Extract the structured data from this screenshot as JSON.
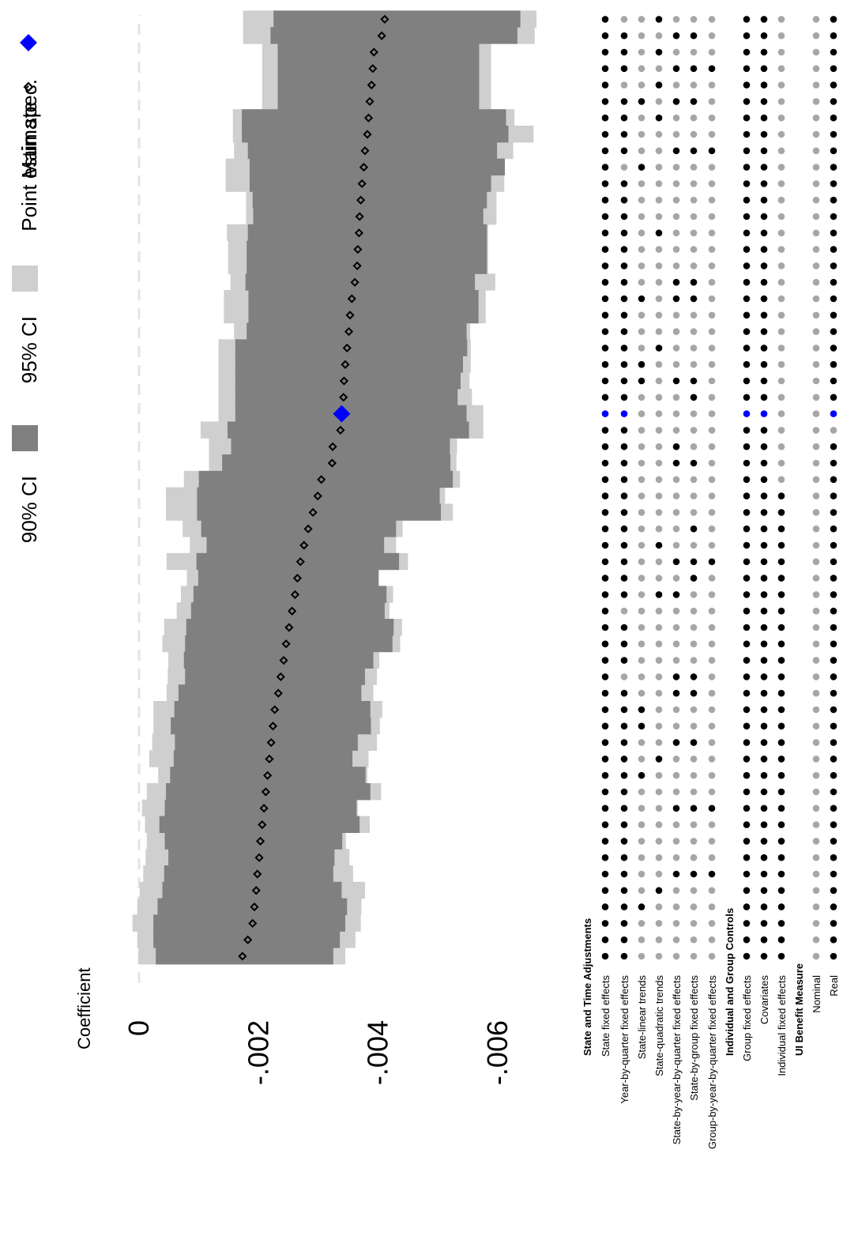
{
  "chart_data": {
    "type": "scatter",
    "subtype": "specification-curve",
    "orientation": "rotated-90",
    "ylabel": "Coefficient",
    "ticks": [
      {
        "value": 0,
        "label": "0"
      },
      {
        "value": -0.002,
        "label": "-.002"
      },
      {
        "value": -0.004,
        "label": "-.004"
      },
      {
        "value": -0.006,
        "label": "-.006"
      }
    ],
    "zero_line": true,
    "legend": {
      "placement": "right",
      "entries": [
        {
          "key": "main",
          "label": "Main spec."
        },
        {
          "key": "point",
          "label": "Point estimate"
        },
        {
          "key": "ci95",
          "label": "95% CI"
        },
        {
          "key": "ci90",
          "label": "90% CI"
        }
      ]
    },
    "main_spec_index": 33,
    "estimates": [
      -0.00173,
      -0.00182,
      -0.0019,
      -0.00193,
      -0.00196,
      -0.00198,
      -0.00201,
      -0.00203,
      -0.00206,
      -0.00209,
      -0.00212,
      -0.00215,
      -0.00218,
      -0.00221,
      -0.00224,
      -0.00227,
      -0.00233,
      -0.00237,
      -0.00242,
      -0.00246,
      -0.00251,
      -0.00256,
      -0.00261,
      -0.00265,
      -0.0027,
      -0.00276,
      -0.00283,
      -0.00291,
      -0.00299,
      -0.00305,
      -0.00323,
      -0.00324,
      -0.00337,
      -0.00339,
      -0.00342,
      -0.00343,
      -0.00345,
      -0.00348,
      -0.00351,
      -0.00353,
      -0.00356,
      -0.00361,
      -0.00365,
      -0.00366,
      -0.00368,
      -0.00369,
      -0.00371,
      -0.00373,
      -0.00376,
      -0.00378,
      -0.00382,
      -0.00384,
      -0.00386,
      -0.00389,
      -0.00391,
      -0.00393,
      -0.00406,
      -0.00411
    ],
    "ci90": [
      [
        -0.00028,
        -0.00325
      ],
      [
        -0.00024,
        -0.00336
      ],
      [
        -0.00024,
        -0.00345
      ],
      [
        -0.00031,
        -0.00348
      ],
      [
        -0.00039,
        -0.00339
      ],
      [
        -0.00042,
        -0.00325
      ],
      [
        -0.00049,
        -0.00327
      ],
      [
        -0.00043,
        -0.0034
      ],
      [
        -0.00034,
        -0.00369
      ],
      [
        -0.00043,
        -0.00364
      ],
      [
        -0.00045,
        -0.00387
      ],
      [
        -0.00052,
        -0.00379
      ],
      [
        -0.00058,
        -0.00357
      ],
      [
        -0.0006,
        -0.00366
      ],
      [
        -0.00053,
        -0.00388
      ],
      [
        -0.00059,
        -0.00387
      ],
      [
        -0.00066,
        -0.00372
      ],
      [
        -0.00077,
        -0.00378
      ],
      [
        -0.00075,
        -0.00392
      ],
      [
        -0.00077,
        -0.00424
      ],
      [
        -0.00079,
        -0.00426
      ],
      [
        -0.00087,
        -0.00411
      ],
      [
        -0.00091,
        -0.00414
      ],
      [
        -0.00099,
        -0.00401
      ],
      [
        -0.00096,
        -0.00435
      ],
      [
        -0.00113,
        -0.0041
      ],
      [
        -0.00104,
        -0.0043
      ],
      [
        -0.00097,
        -0.00505
      ],
      [
        -0.00097,
        -0.00503
      ],
      [
        -0.001,
        -0.00525
      ],
      [
        -0.00139,
        -0.00521
      ],
      [
        -0.00154,
        -0.0052
      ],
      [
        -0.00148,
        -0.00552
      ],
      [
        -0.00161,
        -0.00548
      ],
      [
        -0.00161,
        -0.00533
      ],
      [
        -0.00161,
        -0.00538
      ],
      [
        -0.00161,
        -0.00542
      ],
      [
        -0.00161,
        -0.00549
      ],
      [
        -0.0018,
        -0.00548
      ],
      [
        -0.00183,
        -0.00568
      ],
      [
        -0.00183,
        -0.00568
      ],
      [
        -0.00178,
        -0.00562
      ],
      [
        -0.0018,
        -0.00582
      ],
      [
        -0.0018,
        -0.00582
      ],
      [
        -0.00182,
        -0.00582
      ],
      [
        -0.00191,
        -0.00576
      ],
      [
        -0.0019,
        -0.00582
      ],
      [
        -0.00185,
        -0.00589
      ],
      [
        -0.00185,
        -0.00612
      ],
      [
        -0.00182,
        -0.00599
      ],
      [
        -0.00172,
        -0.00618
      ],
      [
        -0.00172,
        -0.00614
      ],
      [
        -0.00232,
        -0.00569
      ],
      [
        -0.00232,
        -0.00569
      ],
      [
        -0.00232,
        -0.00569
      ],
      [
        -0.00232,
        -0.00569
      ],
      [
        -0.0022,
        -0.00633
      ],
      [
        -0.00225,
        -0.00638
      ]
    ],
    "ci95": [
      [
        1e-05,
        -0.00345
      ],
      [
        3e-05,
        -0.00362
      ],
      [
        0.00011,
        -0.00371
      ],
      [
        3e-05,
        -0.00372
      ],
      [
        -1e-05,
        -0.00378
      ],
      [
        -7e-05,
        -0.00358
      ],
      [
        -0.00011,
        -0.00352
      ],
      [
        -0.00013,
        -0.00346
      ],
      [
        -0.0001,
        -0.00386
      ],
      [
        -5e-05,
        -0.00366
      ],
      [
        -0.00013,
        -0.00405
      ],
      [
        -0.00032,
        -0.00382
      ],
      [
        -0.00017,
        -0.00384
      ],
      [
        -0.00022,
        -0.00398
      ],
      [
        -0.00024,
        -0.00403
      ],
      [
        -0.00024,
        -0.00407
      ],
      [
        -0.00046,
        -0.00392
      ],
      [
        -0.00048,
        -0.00398
      ],
      [
        -0.00049,
        -0.00402
      ],
      [
        -0.00039,
        -0.00437
      ],
      [
        -0.00042,
        -0.0044
      ],
      [
        -0.00063,
        -0.00419
      ],
      [
        -0.0007,
        -0.00425
      ],
      [
        -0.0008,
        -0.00399
      ],
      [
        -0.00046,
        -0.0045
      ],
      [
        -0.00085,
        -0.0043
      ],
      [
        -0.00073,
        -0.00441
      ],
      [
        -0.00045,
        -0.00525
      ],
      [
        -0.00045,
        -0.00512
      ],
      [
        -0.00075,
        -0.00537
      ],
      [
        -0.00117,
        -0.00531
      ],
      [
        -0.00117,
        -0.00532
      ],
      [
        -0.00103,
        -0.00576
      ],
      [
        -0.00133,
        -0.00576
      ],
      [
        -0.00133,
        -0.00557
      ],
      [
        -0.00133,
        -0.00553
      ],
      [
        -0.00133,
        -0.00555
      ],
      [
        -0.00133,
        -0.00555
      ],
      [
        -0.00159,
        -0.00554
      ],
      [
        -0.00142,
        -0.0058
      ],
      [
        -0.00142,
        -0.0058
      ],
      [
        -0.00153,
        -0.00596
      ],
      [
        -0.00149,
        -0.00584
      ],
      [
        -0.00149,
        -0.00584
      ],
      [
        -0.00147,
        -0.00584
      ],
      [
        -0.00179,
        -0.00598
      ],
      [
        -0.00179,
        -0.00598
      ],
      [
        -0.00145,
        -0.00611
      ],
      [
        -0.00145,
        -0.00612
      ],
      [
        -0.00159,
        -0.00626
      ],
      [
        -0.00157,
        -0.0066
      ],
      [
        -0.00157,
        -0.00628
      ],
      [
        -0.00206,
        -0.00589
      ],
      [
        -0.00206,
        -0.00589
      ],
      [
        -0.00206,
        -0.00589
      ],
      [
        -0.00206,
        -0.00589
      ],
      [
        -0.00174,
        -0.00662
      ],
      [
        -0.00174,
        -0.00665
      ]
    ],
    "indicator_groups": [
      {
        "title": "State and Time Adjustments",
        "rows": [
          {
            "label": "State fixed effects",
            "flags": "1111111111111111111111111111111111111111111111111111111111"
          },
          {
            "label": "Year-by-quarter fixed effects",
            "flags": "1111111111111111101110111111111111111111111111110111101110"
          },
          {
            "label": "State-linear trends",
            "flags": "0001000000010011000000000000000000011000100000001000100000"
          },
          {
            "label": "State-quadratic trends",
            "flags": "0000100000001000000000100100000000000100000010000001010101"
          },
          {
            "label": "State-by-year-by-quarter fixed effects",
            "flags": "0000010001000100110000101000001100010000110000000100101010"
          },
          {
            "label": "State-by-group fixed effects",
            "flags": "0000010001000100110000011010001000110000110000000100101010"
          },
          {
            "label": "Group-by-year-by-quarter fixed effects",
            "flags": "0000010001000000000000001000000000000000000000000100001000"
          }
        ]
      },
      {
        "title": "Individual and Group Controls",
        "rows": [
          {
            "label": "Group fixed effects",
            "flags": "1111111111111111111111111111111111111111111111111111111111"
          },
          {
            "label": "Covariates",
            "flags": "1111111111111111111111111111111111111111111111111111111111"
          },
          {
            "label": "Individual fixed effects",
            "flags": "1111111111111111111111111111100000000000000000000000000000"
          }
        ]
      },
      {
        "title": "UI Benefit Measure",
        "rows": [
          {
            "label": "Nominal",
            "flags": "0000000000000000000000000000000000000000000000000000000000"
          },
          {
            "label": "Real",
            "flags": "1111111111111111111111111111111101111111111111111111111111"
          }
        ]
      }
    ],
    "colors": {
      "ci95": "#cfcfcf",
      "ci90": "#808080",
      "point": "#000000",
      "main": "#0000ff",
      "dot_on": "#000000",
      "dot_off": "#a6a6a6",
      "zero_line": "#dde6ee"
    }
  }
}
